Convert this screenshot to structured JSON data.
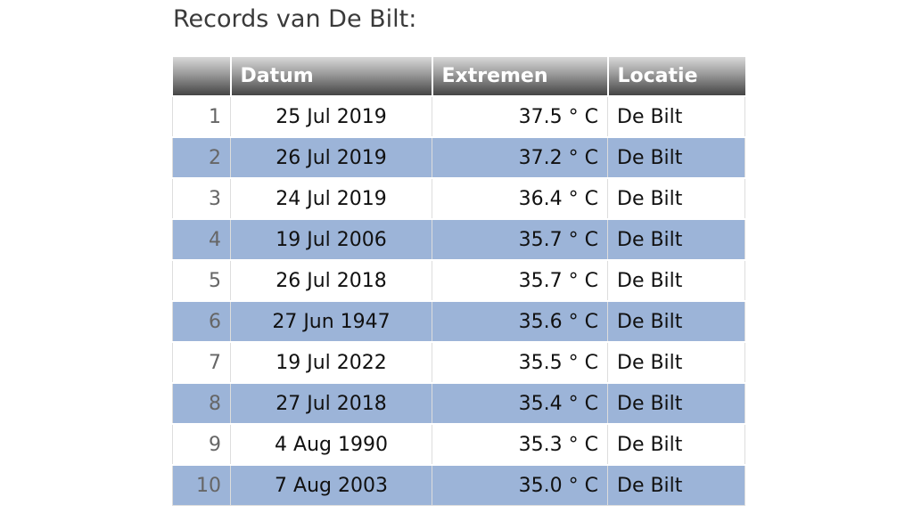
{
  "title": "Records van De Bilt:",
  "table": {
    "headers": [
      "Datum",
      "Extremen",
      "Locatie"
    ],
    "rows": [
      [
        "1",
        "25 Jul 2019",
        "37.5 ° C",
        "De Bilt"
      ],
      [
        "2",
        "26 Jul 2019",
        "37.2 ° C",
        "De Bilt"
      ],
      [
        "3",
        "24 Jul 2019",
        "36.4 ° C",
        "De Bilt"
      ],
      [
        "4",
        "19 Jul 2006",
        "35.7 ° C",
        "De Bilt"
      ],
      [
        "5",
        "26 Jul 2018",
        "35.7 ° C",
        "De Bilt"
      ],
      [
        "6",
        "27 Jun 1947",
        "35.6 ° C",
        "De Bilt"
      ],
      [
        "7",
        "19 Jul 2022",
        "35.5 ° C",
        "De Bilt"
      ],
      [
        "8",
        "27 Jul 2018",
        "35.4 ° C",
        "De Bilt"
      ],
      [
        "9",
        "4 Aug 1990",
        "35.3 ° C",
        "De Bilt"
      ],
      [
        "10",
        "7 Aug 2003",
        "35.0 ° C",
        "De Bilt"
      ]
    ]
  }
}
